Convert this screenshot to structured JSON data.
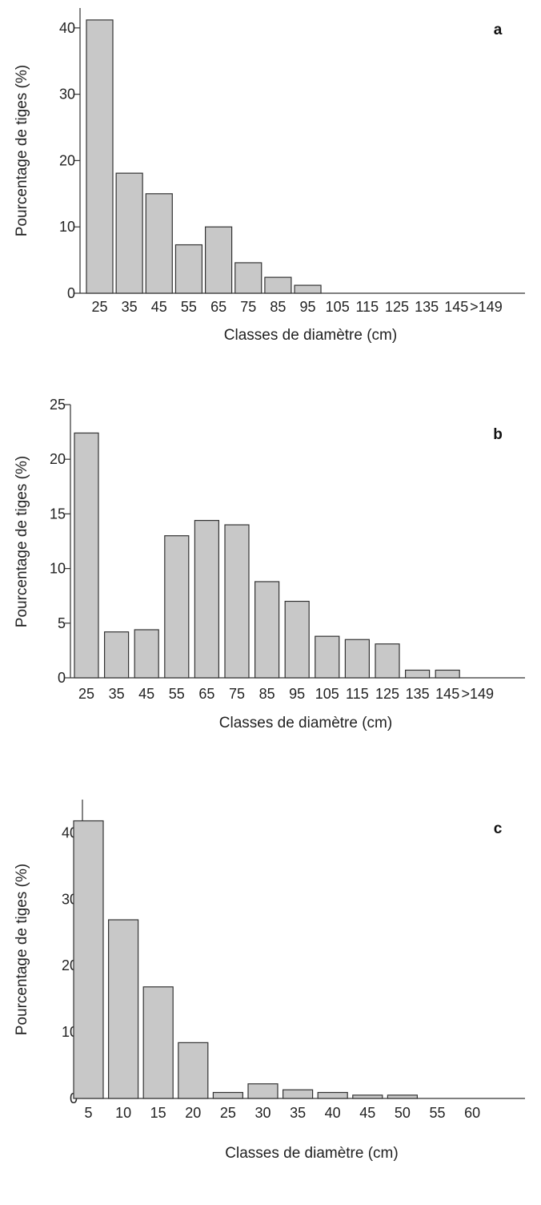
{
  "chart_data": [
    {
      "type": "bar",
      "panel_label": "a",
      "categories": [
        "25",
        "35",
        "45",
        "55",
        "65",
        "75",
        "85",
        "95",
        "105",
        "115",
        "125",
        "135",
        "145",
        ">149"
      ],
      "values": [
        41.2,
        18.1,
        15.0,
        7.3,
        10.0,
        4.6,
        2.4,
        1.2,
        0,
        0,
        0,
        0,
        0,
        0
      ],
      "yticks": [
        "0",
        "10",
        "20",
        "30",
        "40"
      ],
      "ylim": [
        0,
        43
      ],
      "xlabel": "Classes de diamètre (cm)",
      "ylabel": "Pourcentage de tiges (%)",
      "bar_color": "#c8c8c8",
      "edge_color": "#333333",
      "grid": false
    },
    {
      "type": "bar",
      "panel_label": "b",
      "categories": [
        "25",
        "35",
        "45",
        "55",
        "65",
        "75",
        "85",
        "95",
        "105",
        "115",
        "125",
        "135",
        "145",
        ">149"
      ],
      "values": [
        22.4,
        4.2,
        4.4,
        13.0,
        14.4,
        14.0,
        8.8,
        7.0,
        3.8,
        3.5,
        3.1,
        0.7,
        0.7,
        0
      ],
      "yticks": [
        "0",
        "5",
        "10",
        "15",
        "20",
        "25"
      ],
      "ylim": [
        0,
        25
      ],
      "xlabel": "Classes de diamètre (cm)",
      "ylabel": "Pourcentage de tiges (%)",
      "bar_color": "#c8c8c8",
      "edge_color": "#333333",
      "grid": false
    },
    {
      "type": "bar",
      "panel_label": "c",
      "categories": [
        "5",
        "10",
        "15",
        "20",
        "25",
        "30",
        "35",
        "40",
        "45",
        "50",
        "55",
        "60"
      ],
      "values": [
        41.8,
        26.9,
        16.8,
        8.4,
        0.9,
        2.2,
        1.3,
        0.9,
        0.5,
        0.5,
        0,
        0
      ],
      "yticks": [
        "0",
        "10",
        "20",
        "30",
        "40"
      ],
      "ylim": [
        0,
        45
      ],
      "xlabel": "Classes de diamètre (cm)",
      "ylabel": "Pourcentage de tiges (%)",
      "bar_color": "#c8c8c8",
      "edge_color": "#333333",
      "grid": false
    }
  ]
}
